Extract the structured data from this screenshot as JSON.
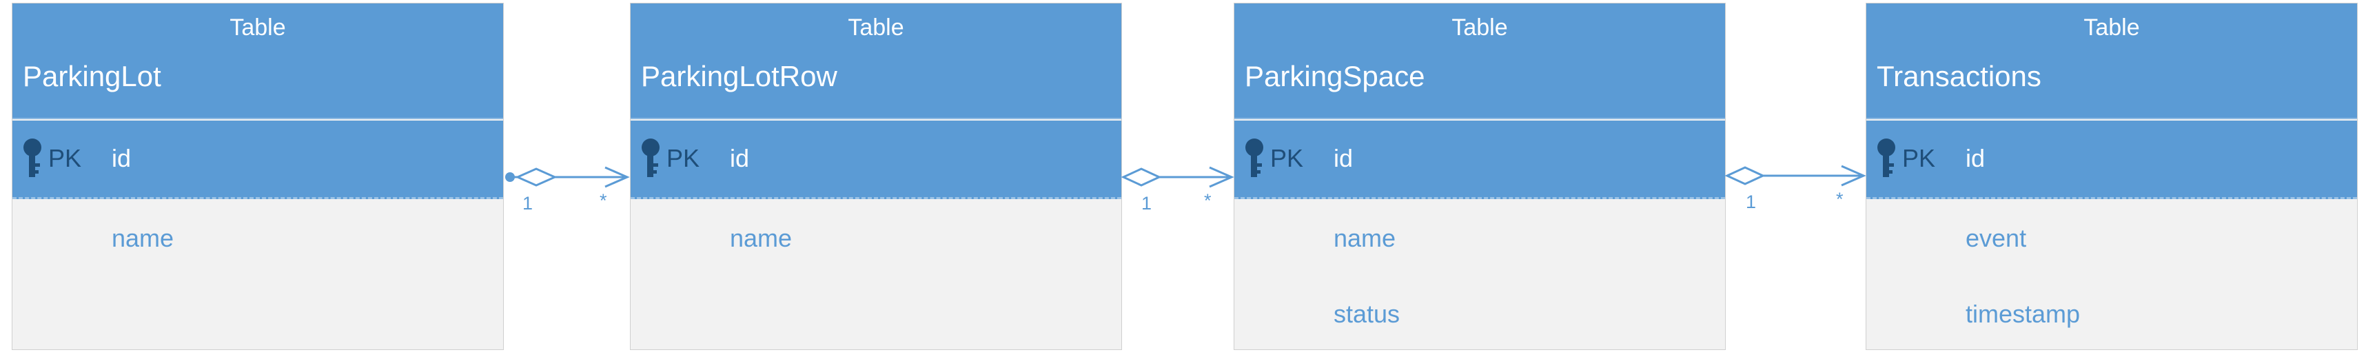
{
  "tables": [
    {
      "kind": "Table",
      "name": "ParkingLot",
      "pk_label": "PK",
      "pk_field": "id",
      "fields": [
        "name"
      ]
    },
    {
      "kind": "Table",
      "name": "ParkingLotRow",
      "pk_label": "PK",
      "pk_field": "id",
      "fields": [
        "name"
      ]
    },
    {
      "kind": "Table",
      "name": "ParkingSpace",
      "pk_label": "PK",
      "pk_field": "id",
      "fields": [
        "name",
        "status"
      ]
    },
    {
      "kind": "Table",
      "name": "Transactions",
      "pk_label": "PK",
      "pk_field": "id",
      "fields": [
        "event",
        "timestamp"
      ]
    }
  ],
  "relationships": [
    {
      "from": "ParkingLot",
      "to": "ParkingLotRow",
      "from_multiplicity": "1",
      "to_multiplicity": "*"
    },
    {
      "from": "ParkingLotRow",
      "to": "ParkingSpace",
      "from_multiplicity": "1",
      "to_multiplicity": "*"
    },
    {
      "from": "ParkingSpace",
      "to": "Transactions",
      "from_multiplicity": "1",
      "to_multiplicity": "*"
    }
  ],
  "colors": {
    "header": "#5b9bd5",
    "body": "#f2f2f2",
    "field_text": "#5b9bd5",
    "pk_text": "#1f4e79",
    "connector": "#5b9bd5"
  }
}
